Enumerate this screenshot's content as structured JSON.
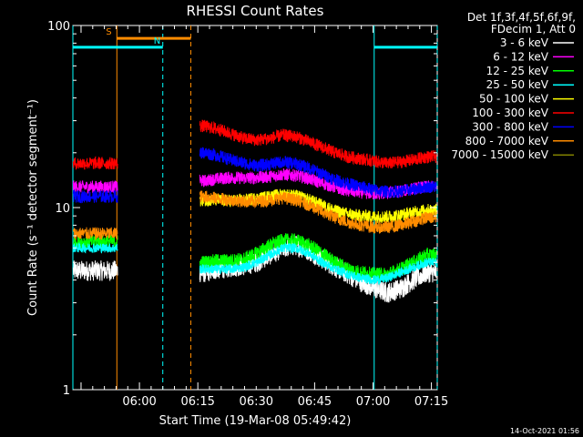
{
  "chart_data": {
    "type": "line",
    "title": "RHESSI Count Rates",
    "xlabel": "Start Time (19-Mar-08 05:49:42)",
    "ylabel": "Count Rate (s⁻¹ detector segment⁻¹)",
    "y_scale": "log",
    "ylim": [
      1,
      100
    ],
    "y_ticks": [
      "1",
      "10",
      "100"
    ],
    "xlim_minutes": [
      -6.8,
      86.8
    ],
    "x_ticks": [
      {
        "label": "06:00",
        "minute": 10.3
      },
      {
        "label": "06:15",
        "minute": 25.3
      },
      {
        "label": "06:30",
        "minute": 40.3
      },
      {
        "label": "06:45",
        "minute": 55.3
      },
      {
        "label": "07:00",
        "minute": 70.3
      },
      {
        "label": "07:15",
        "minute": 85.3
      }
    ],
    "legend_header": [
      "Det 1f,3f,4f,5f,6f,9f,",
      "FDecim 1, Att 0"
    ],
    "legend_position": "right",
    "data_gap_minutes": [
      4.8,
      25.8
    ],
    "series": [
      {
        "name": "3 - 6 keV",
        "color": "#ffffff",
        "values": [
          4.4,
          4.6,
          4.7,
          4.8,
          5.0,
          5.5,
          6.0,
          6.2,
          5.8,
          5.2,
          4.7,
          4.3,
          3.9,
          3.6,
          3.4,
          3.6,
          4.0,
          4.4
        ]
      },
      {
        "name": "6 - 12 keV",
        "color": "#ff00ff",
        "values": [
          14.0,
          14.4,
          14.6,
          14.5,
          14.6,
          14.8,
          15.2,
          15.0,
          14.4,
          13.6,
          12.9,
          12.4,
          12.1,
          11.9,
          12.0,
          12.3,
          12.7,
          13.0
        ]
      },
      {
        "name": "12 - 25 keV",
        "color": "#00ff00",
        "values": [
          5.0,
          5.1,
          5.1,
          5.2,
          5.6,
          6.2,
          6.6,
          6.6,
          6.2,
          5.6,
          5.0,
          4.6,
          4.4,
          4.3,
          4.3,
          4.6,
          5.0,
          5.5
        ]
      },
      {
        "name": "25 - 50 keV",
        "color": "#00ffff",
        "values": [
          4.6,
          4.6,
          4.6,
          4.7,
          5.0,
          5.5,
          6.0,
          6.0,
          5.6,
          5.0,
          4.6,
          4.3,
          4.1,
          4.0,
          4.1,
          4.4,
          4.7,
          5.0
        ]
      },
      {
        "name": "50 - 100 keV",
        "color": "#ffff00",
        "values": [
          11.0,
          11.0,
          10.9,
          11.0,
          11.2,
          11.5,
          11.8,
          11.6,
          11.0,
          10.3,
          9.6,
          9.2,
          9.0,
          8.9,
          8.9,
          9.1,
          9.4,
          9.7
        ]
      },
      {
        "name": "100 - 300 keV",
        "color": "#ff0000",
        "values": [
          28.0,
          27.0,
          25.5,
          24.0,
          23.5,
          24.0,
          25.0,
          24.5,
          23.0,
          21.5,
          20.0,
          19.0,
          18.5,
          18.0,
          17.5,
          17.8,
          18.3,
          19.0
        ]
      },
      {
        "name": "300 - 800 keV",
        "color": "#0000ff",
        "values": [
          20.0,
          19.3,
          18.3,
          17.5,
          17.0,
          17.3,
          17.8,
          17.4,
          16.5,
          15.3,
          14.2,
          13.5,
          13.0,
          12.5,
          12.2,
          12.3,
          12.6,
          13.0
        ]
      },
      {
        "name": "800 - 7000 keV",
        "color": "#ff8c00",
        "values": [
          11.5,
          11.2,
          11.0,
          10.8,
          10.8,
          11.0,
          11.3,
          11.0,
          10.3,
          9.5,
          8.8,
          8.3,
          8.0,
          7.8,
          7.8,
          8.0,
          8.4,
          8.8
        ]
      },
      {
        "name": "7000 - 15000 keV",
        "color": "#808000",
        "values": []
      }
    ],
    "series_x_minutes": [
      27.0,
      30.4,
      33.7,
      37.1,
      40.4,
      43.8,
      47.2,
      50.5,
      53.9,
      57.2,
      60.6,
      63.9,
      67.3,
      70.6,
      74.0,
      77.4,
      80.7,
      84.1
    ],
    "pre_gap_levels": [
      {
        "series": "3 - 6 keV",
        "value": 4.5
      },
      {
        "series": "6 - 12 keV",
        "value": 13.0
      },
      {
        "series": "12 - 25 keV",
        "value": 6.5
      },
      {
        "series": "25 - 50 keV",
        "value": 6.0
      },
      {
        "series": "100 - 300 keV",
        "value": 17.5
      },
      {
        "series": "300 - 800 keV",
        "value": 11.5
      },
      {
        "series": "800 - 7000 keV",
        "value": 7.2
      }
    ],
    "annotations": [
      {
        "label": "S",
        "color": "#ff8c00",
        "level": 85,
        "x_minutes": [
          4.5,
          23.5
        ]
      },
      {
        "label": "N",
        "color": "#00ffff",
        "level": 76,
        "x_minutes": [
          -6.8,
          16.3
        ]
      },
      {
        "label": "",
        "color": "#00ffff",
        "level": 76,
        "x_minutes": [
          70.6,
          86.8
        ]
      }
    ],
    "vertical_markers": [
      {
        "x_minutes": -6.8,
        "color": "#00ffff",
        "style": "solid"
      },
      {
        "x_minutes": 4.5,
        "color": "#ff8c00",
        "style": "solid"
      },
      {
        "x_minutes": 16.3,
        "color": "#00ffff",
        "style": "dashed"
      },
      {
        "x_minutes": 23.5,
        "color": "#ff8c00",
        "style": "dashed"
      },
      {
        "x_minutes": 70.6,
        "color": "#00ffff",
        "style": "solid"
      },
      {
        "x_minutes": 86.8,
        "color": "#00ffff",
        "style": "dashed"
      }
    ]
  },
  "footer": {
    "timestamp": "14-Oct-2021 01:56"
  }
}
